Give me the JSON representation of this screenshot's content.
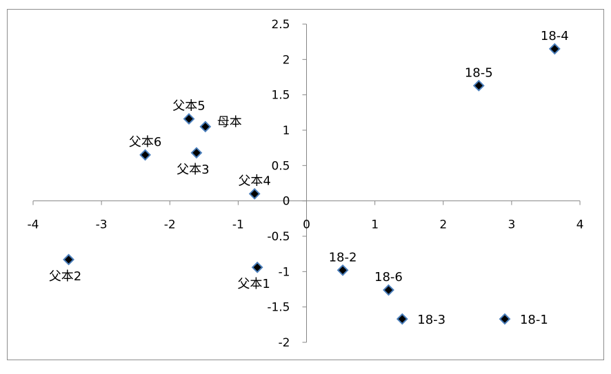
{
  "chart_data": {
    "type": "scatter",
    "title": "",
    "xlabel": "",
    "ylabel": "",
    "xlim": [
      -4,
      4
    ],
    "ylim": [
      -2,
      2.5
    ],
    "x_ticks": [
      -4,
      -3,
      -2,
      -1,
      0,
      1,
      2,
      3,
      4
    ],
    "y_ticks": [
      2.5,
      2,
      1.5,
      1,
      0.5,
      0,
      -0.5,
      -1,
      -1.5,
      -2
    ],
    "x_tick_labels": [
      "-4",
      "-3",
      "-2",
      "-1",
      "0",
      "1",
      "2",
      "3",
      "4"
    ],
    "y_tick_labels": [
      "2.5",
      "2",
      "1.5",
      "1",
      "0.5",
      "0",
      "-0.5",
      "-1",
      "-1.5",
      "-2"
    ],
    "grid": false,
    "legend": "none",
    "marker": "diamond",
    "marker_fill": "#000000",
    "marker_edge": "#4a7ebb",
    "points": [
      {
        "label": "18-4",
        "x": 3.63,
        "y": 2.15,
        "label_pos": "above"
      },
      {
        "label": "18-5",
        "x": 2.52,
        "y": 1.63,
        "label_pos": "above"
      },
      {
        "label": "父本5",
        "x": -1.72,
        "y": 1.16,
        "label_pos": "above"
      },
      {
        "label": "母本",
        "x": -1.48,
        "y": 1.05,
        "label_pos": "right-up"
      },
      {
        "label": "父本6",
        "x": -2.36,
        "y": 0.65,
        "label_pos": "above"
      },
      {
        "label": "父本3",
        "x": -1.61,
        "y": 0.68,
        "label_pos": "below"
      },
      {
        "label": "父本4",
        "x": -0.76,
        "y": 0.1,
        "label_pos": "above"
      },
      {
        "label": "父本2",
        "x": -3.48,
        "y": -0.83,
        "label_pos": "below"
      },
      {
        "label": "父本1",
        "x": -0.72,
        "y": -0.94,
        "label_pos": "below"
      },
      {
        "label": "18-2",
        "x": 0.53,
        "y": -0.98,
        "label_pos": "above"
      },
      {
        "label": "18-6",
        "x": 1.2,
        "y": -1.26,
        "label_pos": "above"
      },
      {
        "label": "18-3",
        "x": 1.4,
        "y": -1.67,
        "label_pos": "right"
      },
      {
        "label": "18-1",
        "x": 2.9,
        "y": -1.67,
        "label_pos": "right"
      }
    ]
  }
}
